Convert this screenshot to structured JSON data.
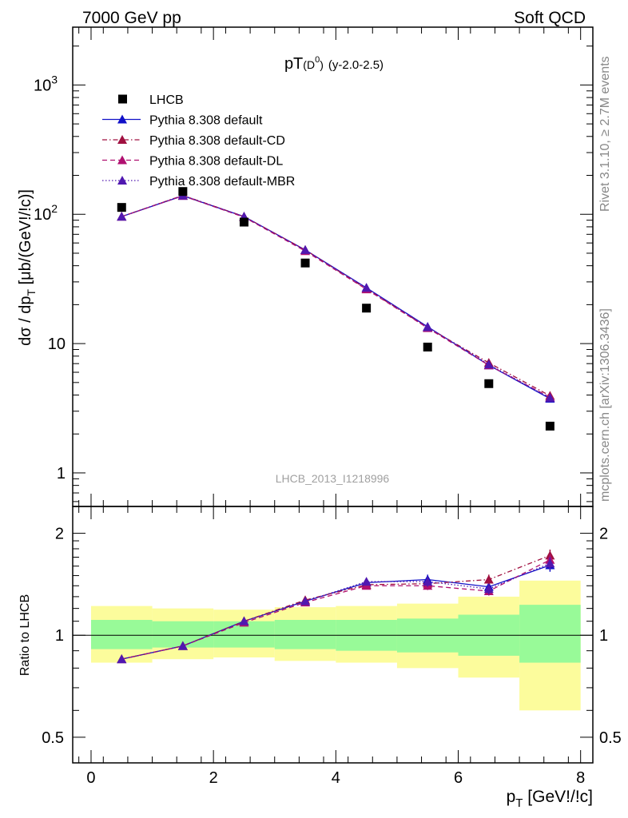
{
  "header": {
    "left": "7000 GeV pp",
    "right": "Soft QCD"
  },
  "side_labels": {
    "rivet": "Rivet 3.1.10, ≥ 2.7M events",
    "source": "mcplots.cern.ch [arXiv:1306.3436]"
  },
  "chart_data": [
    {
      "type": "scatter",
      "panel": "main",
      "title_main": "pT",
      "title_sub": "(D",
      "title_sup": "0",
      "title_close": ")",
      "title_rest": "(y-2.0-2.5)",
      "ylabel": "dσ / dp",
      "ylabel_sub": "T",
      "ylabel_units": " [μb/(GeV!/!c)]",
      "watermark": "LHCB_2013_I1218996",
      "yscale": "log",
      "ylim": [
        0.55,
        2800
      ],
      "xlim": [
        -0.3,
        8.2
      ],
      "yticks": [
        {
          "v": 1,
          "label": "1"
        },
        {
          "v": 10,
          "label": "10"
        },
        {
          "v": 100,
          "label": "10",
          "sup": "2"
        },
        {
          "v": 1000,
          "label": "10",
          "sup": "3"
        }
      ],
      "x": [
        0.5,
        1.5,
        2.5,
        3.5,
        4.5,
        5.5,
        6.5,
        7.5
      ],
      "series": [
        {
          "name": "LHCB",
          "color": "#000000",
          "marker": "square",
          "line": "none",
          "values": [
            113,
            150,
            87,
            42,
            18.8,
            9.4,
            4.9,
            2.3
          ]
        },
        {
          "name": "Pythia 8.308 default",
          "color": "#1010c8",
          "marker": "triangle",
          "line": "solid",
          "values": [
            96,
            139,
            96,
            53,
            27,
            13.5,
            6.8,
            3.75
          ]
        },
        {
          "name": "Pythia 8.308 default-CD",
          "color": "#a01040",
          "marker": "triangle",
          "line": "dashdot",
          "values": [
            96,
            140,
            96,
            53,
            26.5,
            13.3,
            7.1,
            3.95
          ]
        },
        {
          "name": "Pythia 8.308 default-DL",
          "color": "#b01070",
          "marker": "triangle",
          "line": "dashed",
          "values": [
            96,
            139,
            95,
            52,
            26.3,
            13.2,
            6.8,
            3.85
          ]
        },
        {
          "name": "Pythia 8.308 default-MBR",
          "color": "#5018b0",
          "marker": "triangle",
          "line": "dotted",
          "values": [
            96,
            140,
            96,
            53,
            27,
            13.4,
            6.9,
            3.8
          ]
        }
      ]
    },
    {
      "type": "line",
      "panel": "ratio",
      "ylabel": "Ratio to LHCB",
      "xlabel": "p",
      "xlabel_sub": "T",
      "xlabel_units": " [GeV!/!c]",
      "yscale": "log",
      "ylim": [
        0.42,
        2.4
      ],
      "xlim": [
        -0.3,
        8.2
      ],
      "yticks": [
        {
          "v": 0.5,
          "label": "0.5"
        },
        {
          "v": 1,
          "label": "1"
        },
        {
          "v": 2,
          "label": "2"
        }
      ],
      "xticks": [
        {
          "v": 0,
          "label": "0"
        },
        {
          "v": 2,
          "label": "2"
        },
        {
          "v": 4,
          "label": "4"
        },
        {
          "v": 6,
          "label": "6"
        },
        {
          "v": 8,
          "label": "8"
        }
      ],
      "bands": [
        {
          "x0": 0,
          "x1": 1,
          "inner": [
            0.91,
            1.11
          ],
          "outer": [
            0.83,
            1.22
          ]
        },
        {
          "x0": 1,
          "x1": 2,
          "inner": [
            0.92,
            1.1
          ],
          "outer": [
            0.85,
            1.2
          ]
        },
        {
          "x0": 2,
          "x1": 3,
          "inner": [
            0.92,
            1.1
          ],
          "outer": [
            0.86,
            1.19
          ]
        },
        {
          "x0": 3,
          "x1": 4,
          "inner": [
            0.91,
            1.11
          ],
          "outer": [
            0.84,
            1.21
          ]
        },
        {
          "x0": 4,
          "x1": 5,
          "inner": [
            0.9,
            1.11
          ],
          "outer": [
            0.83,
            1.22
          ]
        },
        {
          "x0": 5,
          "x1": 6,
          "inner": [
            0.89,
            1.12
          ],
          "outer": [
            0.8,
            1.24
          ]
        },
        {
          "x0": 6,
          "x1": 7,
          "inner": [
            0.87,
            1.15
          ],
          "outer": [
            0.75,
            1.3
          ]
        },
        {
          "x0": 7,
          "x1": 8,
          "inner": [
            0.83,
            1.23
          ],
          "outer": [
            0.6,
            1.45
          ]
        }
      ],
      "band_colors": {
        "inner": "#98fa98",
        "outer": "#fcfc9c"
      },
      "x": [
        0.5,
        1.5,
        2.5,
        3.5,
        4.5,
        5.5,
        6.5,
        7.5
      ],
      "series": [
        {
          "name": "Pythia 8.308 default",
          "color": "#1010c8",
          "line": "solid",
          "values": [
            0.85,
            0.93,
            1.1,
            1.26,
            1.43,
            1.46,
            1.39,
            1.61
          ],
          "err": [
            0.01,
            0.01,
            0.01,
            0.02,
            0.02,
            0.05,
            0.05,
            0.07
          ]
        },
        {
          "name": "Pythia 8.308 default-CD",
          "color": "#a01040",
          "line": "dashdot",
          "values": [
            0.85,
            0.93,
            1.1,
            1.27,
            1.41,
            1.42,
            1.46,
            1.72
          ],
          "err": [
            0.01,
            0.01,
            0.01,
            0.02,
            0.02,
            0.05,
            0.05,
            0.07
          ]
        },
        {
          "name": "Pythia 8.308 default-DL",
          "color": "#b01070",
          "line": "dashed",
          "values": [
            0.85,
            0.93,
            1.09,
            1.25,
            1.4,
            1.4,
            1.35,
            1.67
          ],
          "err": [
            0.01,
            0.01,
            0.01,
            0.02,
            0.02,
            0.04,
            0.04,
            0.06
          ]
        },
        {
          "name": "Pythia 8.308 default-MBR",
          "color": "#5018b0",
          "line": "dotted",
          "values": [
            0.85,
            0.93,
            1.1,
            1.26,
            1.44,
            1.44,
            1.37,
            1.63
          ],
          "err": [
            0.01,
            0.01,
            0.01,
            0.02,
            0.02,
            0.05,
            0.05,
            0.07
          ]
        }
      ]
    }
  ]
}
